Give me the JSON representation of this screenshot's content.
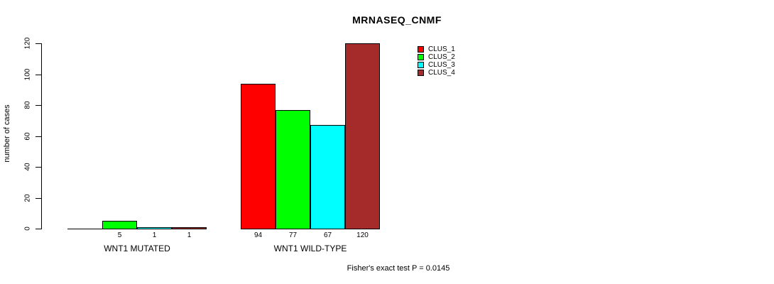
{
  "chart_data": {
    "type": "bar",
    "title": "MRNASEQ_CNMF",
    "ylabel": "number of cases",
    "xlabel": "",
    "categories": [
      "WNT1 MUTATED",
      "WNT1 WILD-TYPE"
    ],
    "series": [
      {
        "name": "CLUS_1",
        "color": "#FF0000",
        "values": [
          0,
          94
        ]
      },
      {
        "name": "CLUS_2",
        "color": "#00FF00",
        "values": [
          5,
          77
        ]
      },
      {
        "name": "CLUS_3",
        "color": "#00FFFF",
        "values": [
          1,
          67
        ]
      },
      {
        "name": "CLUS_4",
        "color": "#A52A2A",
        "values": [
          1,
          120
        ]
      }
    ],
    "value_labels": [
      [
        "",
        "5",
        "1",
        "1"
      ],
      [
        "94",
        "77",
        "67",
        "120"
      ]
    ],
    "yticks": [
      0,
      20,
      40,
      60,
      80,
      100,
      120
    ],
    "ylim": [
      0,
      120
    ],
    "grid": false,
    "legend": [
      "CLUS_1",
      "CLUS_2",
      "CLUS_3",
      "CLUS_4"
    ],
    "legend_position": "top-right",
    "bar_border_color": "#000000",
    "annotation": "Fisher's exact test P = 0.0145"
  }
}
